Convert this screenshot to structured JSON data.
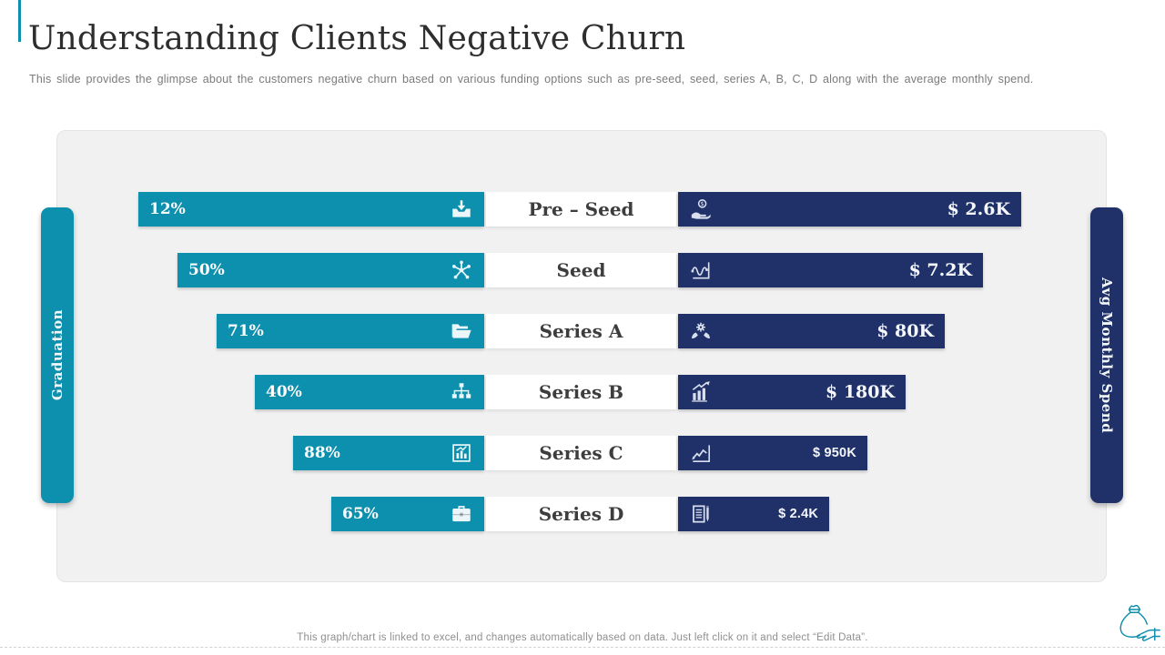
{
  "title": "Understanding Clients Negative Churn",
  "subtitle": "This slide provides the glimpse about the customers negative churn based on various funding options such as pre-seed, seed, series A, B, C, D along with the average monthly spend.",
  "footer": "This graph/chart is linked to excel, and changes automatically based on data. Just left click on it and select “Edit Data”.",
  "axes": {
    "left": "Graduation",
    "right": "Avg Monthly Spend"
  },
  "colors": {
    "teal": "#0D8FAE",
    "navy": "#1F3168",
    "panel": "#F1F1F2"
  },
  "chart_data": {
    "type": "bar",
    "categories": [
      "Pre – Seed",
      "Seed",
      "Series A",
      "Series B",
      "Series C",
      "Series D"
    ],
    "series": [
      {
        "name": "Graduation",
        "unit": "%",
        "values": [
          12,
          50,
          71,
          40,
          88,
          65
        ]
      },
      {
        "name": "Avg Monthly Spend",
        "values": [
          "$ 2.6K",
          "$ 7.2K",
          "$ 80K",
          "$ 180K",
          "$ 950K",
          "$ 2.4K"
        ]
      }
    ],
    "title": "Understanding Clients Negative Churn",
    "legend_position": "vertical side pills",
    "grid": false,
    "layout_note": "mirrored staircase bars; lengths decrease uniformly per row and are decorative, not proportional to values"
  },
  "rows": [
    {
      "percent": "12%",
      "label": "Pre – Seed",
      "value": "$ 2.6K",
      "left_icon": "inbox-download-icon",
      "right_icon": "hand-holding-dollar-icon"
    },
    {
      "percent": "50%",
      "label": "Seed",
      "value": "$ 7.2K",
      "left_icon": "share-network-icon",
      "right_icon": "wave-chart-icon"
    },
    {
      "percent": "71%",
      "label": "Series A",
      "value": "$ 80K",
      "left_icon": "open-folder-icon",
      "right_icon": "hands-gear-icon"
    },
    {
      "percent": "40%",
      "label": "Series B",
      "value": "$ 180K",
      "left_icon": "org-chart-icon",
      "right_icon": "growth-bars-arrow-icon"
    },
    {
      "percent": "88%",
      "label": "Series C",
      "value": "$ 950K",
      "left_icon": "framed-bar-chart-icon",
      "right_icon": "rising-line-chart-icon"
    },
    {
      "percent": "65%",
      "label": "Series D",
      "value": "$ 2.4K",
      "left_icon": "briefcase-icon",
      "right_icon": "document-pencil-icon"
    }
  ]
}
